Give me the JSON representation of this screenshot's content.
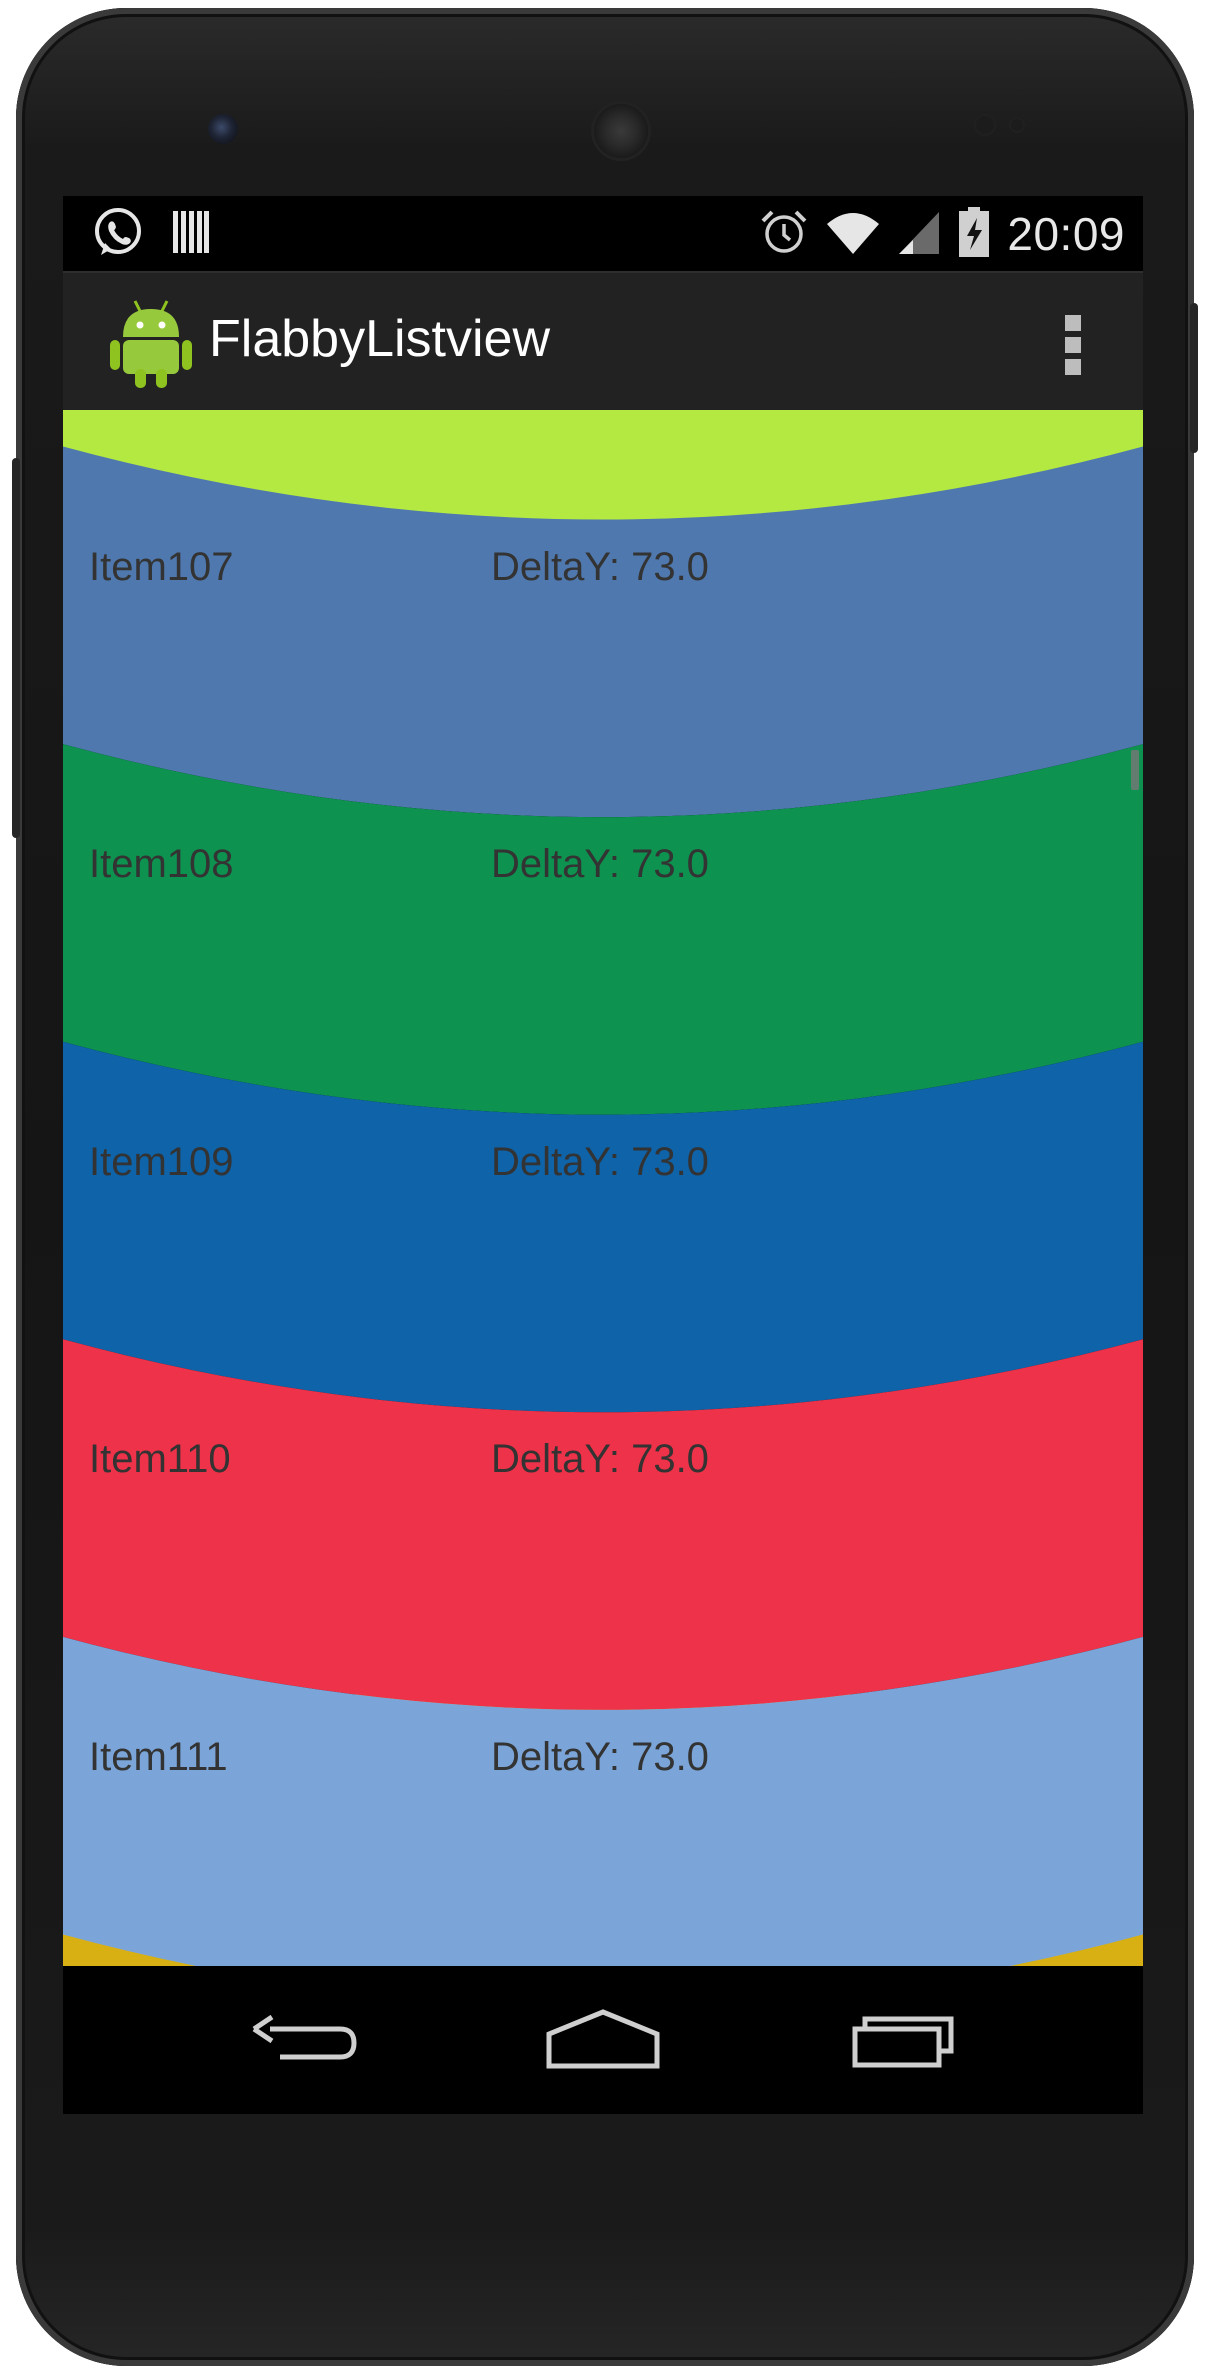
{
  "status_bar": {
    "time": "20:09",
    "left_icons": [
      "whatsapp-icon",
      "barcode-icon"
    ],
    "right_icons": [
      "alarm-icon",
      "wifi-icon",
      "signal-icon",
      "battery-charging-icon"
    ]
  },
  "action_bar": {
    "title": "FlabbyListview",
    "app_icon": "android-robot-icon",
    "menu_icon": "overflow-menu-icon"
  },
  "list": {
    "items": [
      {
        "name": "Item107",
        "delta": "DeltaY: 73.0",
        "color": "#4f79ae"
      },
      {
        "name": "Item108",
        "delta": "DeltaY: 73.0",
        "color": "#0e9250"
      },
      {
        "name": "Item109",
        "delta": "DeltaY: 73.0",
        "color": "#0f63a8"
      },
      {
        "name": "Item110",
        "delta": "DeltaY: 73.0",
        "color": "#ee3249"
      },
      {
        "name": "Item111",
        "delta": "DeltaY: 73.0",
        "color": "#7ba5d8"
      }
    ],
    "top_partial_color": "#b4e942",
    "bottom_partial_color": "#d8b014"
  },
  "nav_bar": {
    "buttons": [
      "back-icon",
      "home-icon",
      "recent-apps-icon"
    ]
  }
}
